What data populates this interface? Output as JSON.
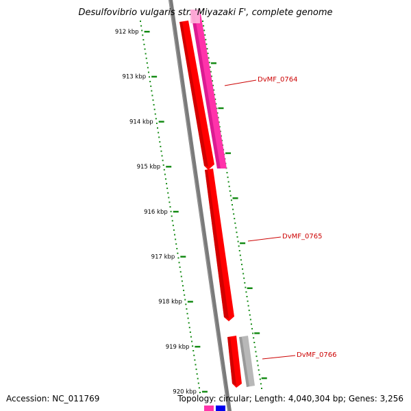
{
  "title": "Desulfovibrio vulgaris str. 'Miyazaki F', complete genome",
  "footer": {
    "accession": "Accession: NC_011769",
    "topology": "Topology: circular; Length: 4,040,304 bp; Genes: 3,256"
  },
  "ticks": [
    {
      "label": "912 kbp"
    },
    {
      "label": "913 kbp"
    },
    {
      "label": "914 kbp"
    },
    {
      "label": "915 kbp"
    },
    {
      "label": "916 kbp"
    },
    {
      "label": "917 kbp"
    },
    {
      "label": "918 kbp"
    },
    {
      "label": "919 kbp"
    },
    {
      "label": "920 kbp"
    }
  ],
  "genes": [
    {
      "label": "DvMF_0764"
    },
    {
      "label": "DvMF_0765"
    },
    {
      "label": "DvMF_0766"
    }
  ],
  "colors": {
    "backbone": "#7a7a7a",
    "forward_gene": "#ff0000",
    "forward_gene_dark": "#b40000",
    "cds_track": "#ff33aa",
    "cds_track_dark": "#cc1188",
    "gray_track": "#b8b8b8",
    "tick_marks": "#138a13",
    "label_text": "#cc0000"
  }
}
